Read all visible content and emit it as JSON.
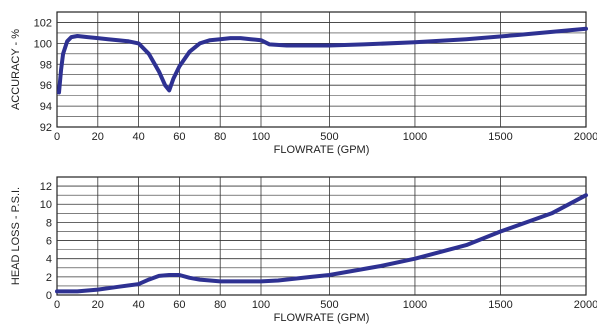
{
  "chart_data": [
    {
      "type": "line",
      "title": "",
      "xlabel": "FLOWRATE (GPM)",
      "ylabel": "ACCURACY - %",
      "x_axis_scale": "piecewise (0–100 linear, 100–2000 linear)",
      "x_ticks": [
        0,
        20,
        40,
        60,
        80,
        100,
        500,
        1000,
        1500,
        2000
      ],
      "x_tick_labels": [
        "0",
        "20",
        "40",
        "60",
        "80",
        "100",
        "500",
        "1000",
        "1500",
        "2000"
      ],
      "y_ticks": [
        92,
        94,
        96,
        98,
        100,
        102
      ],
      "y_tick_labels": [
        "92",
        "94",
        "96",
        "98",
        "100",
        "102"
      ],
      "ylim": [
        92,
        103
      ],
      "grid": true,
      "series_color": "#2e3192",
      "series": [
        {
          "x": [
            1,
            2,
            3,
            5,
            7,
            10,
            15,
            20,
            25,
            30,
            35,
            40,
            45,
            50,
            53,
            55,
            57,
            60,
            65,
            70,
            75,
            80,
            85,
            90,
            95,
            100,
            150,
            250,
            400,
            500,
            700,
            1000,
            1300,
            1600,
            1800,
            2000
          ],
          "y": [
            95.3,
            97.5,
            99.0,
            100.2,
            100.6,
            100.7,
            100.6,
            100.5,
            100.4,
            100.3,
            100.2,
            100.0,
            99.0,
            97.3,
            96.0,
            95.5,
            96.6,
            97.8,
            99.2,
            100.0,
            100.3,
            100.4,
            100.5,
            100.5,
            100.4,
            100.3,
            99.9,
            99.8,
            99.8,
            99.8,
            99.9,
            100.1,
            100.4,
            100.8,
            101.1,
            101.4
          ]
        }
      ]
    },
    {
      "type": "line",
      "title": "",
      "xlabel": "FLOWRATE (GPM)",
      "ylabel": "HEAD LOSS - P.S.I.",
      "x_axis_scale": "piecewise (0–100 linear, 100–2000 linear)",
      "x_ticks": [
        0,
        20,
        40,
        60,
        80,
        100,
        500,
        1000,
        1500,
        2000
      ],
      "x_tick_labels": [
        "0",
        "20",
        "40",
        "60",
        "80",
        "100",
        "500",
        "1000",
        "1500",
        "2000"
      ],
      "y_ticks": [
        0,
        2,
        4,
        6,
        8,
        10,
        12
      ],
      "y_tick_labels": [
        "0",
        "2",
        "4",
        "6",
        "8",
        "10",
        "12"
      ],
      "ylim": [
        0,
        13
      ],
      "grid": true,
      "series_color": "#2e3192",
      "series": [
        {
          "x": [
            0,
            10,
            20,
            30,
            40,
            45,
            50,
            55,
            60,
            65,
            70,
            80,
            90,
            100,
            200,
            400,
            500,
            800,
            1000,
            1300,
            1500,
            1800,
            2000
          ],
          "y": [
            0.4,
            0.4,
            0.6,
            0.9,
            1.2,
            1.7,
            2.1,
            2.2,
            2.2,
            1.9,
            1.7,
            1.5,
            1.5,
            1.5,
            1.6,
            2.0,
            2.2,
            3.2,
            4.0,
            5.5,
            7.0,
            9.0,
            11.0
          ]
        }
      ]
    }
  ]
}
